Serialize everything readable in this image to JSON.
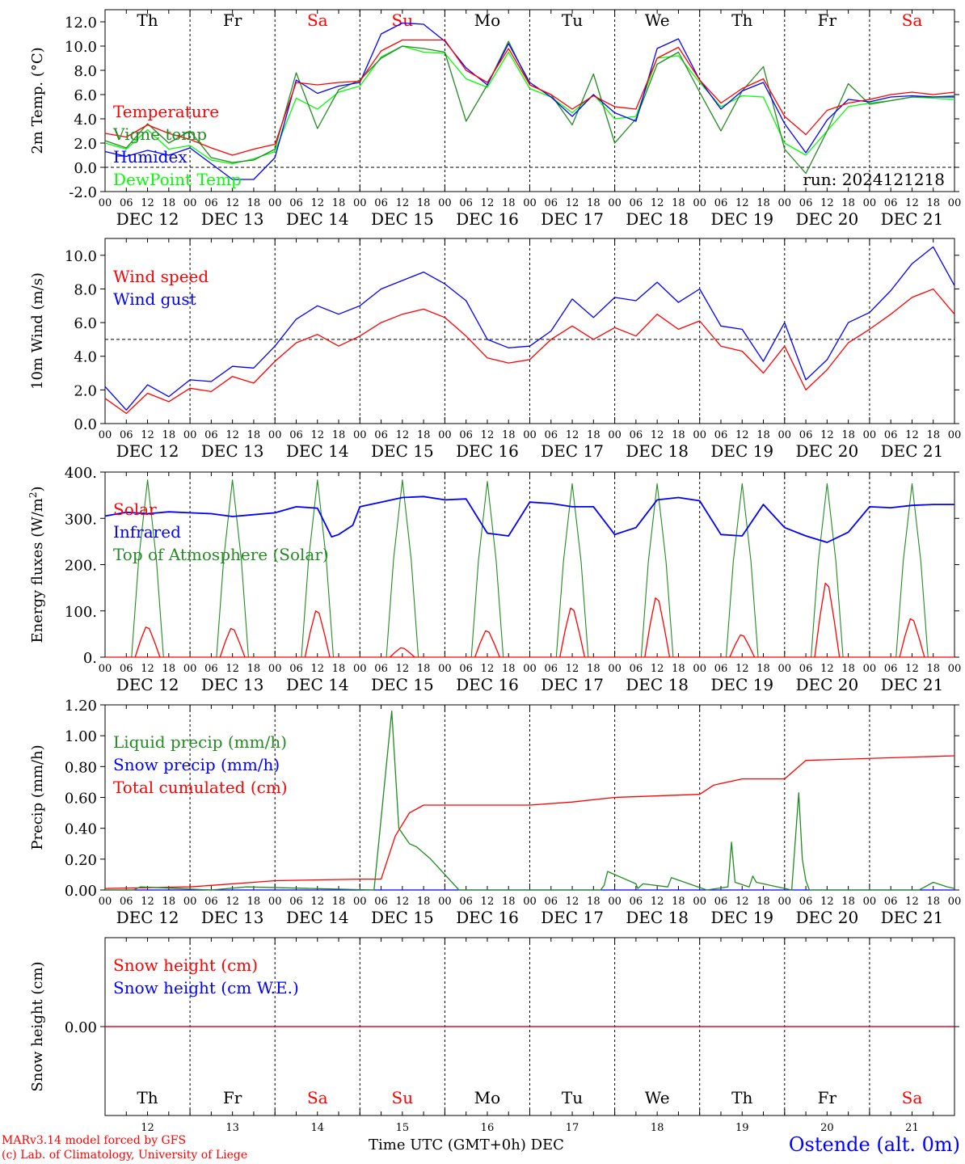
{
  "chart_data": [
    {
      "type": "line",
      "ylabel": "2m Temp. (°C)",
      "ylim": [
        -2,
        13
      ],
      "yticks": [
        "-2.0",
        "0.0",
        "2.0",
        "4.0",
        "6.0",
        "8.0",
        "10.0",
        "12.0"
      ],
      "reference_line": 0,
      "day_names": [
        "Th",
        "Fr",
        "Sa",
        "Su",
        "Mo",
        "Tu",
        "We",
        "Th",
        "Fr",
        "Sa"
      ],
      "weekend_days": [
        "Sa",
        "Su"
      ],
      "run_label": "run: 2024121218",
      "x": [
        0,
        6,
        12,
        18,
        24,
        30,
        36,
        42,
        48,
        54,
        60,
        66,
        72,
        78,
        84,
        90,
        96,
        102,
        108,
        114,
        120,
        126,
        132,
        138,
        144,
        150,
        156,
        162,
        168,
        174,
        180,
        186,
        192,
        198,
        204,
        210,
        216,
        222,
        228,
        234,
        240
      ],
      "series": [
        {
          "name": "Temperature",
          "color": "#ff0000",
          "values": [
            2.8,
            2.5,
            3.5,
            2.8,
            2.3,
            1.6,
            1.0,
            1.5,
            1.9,
            7.0,
            6.8,
            7.0,
            7.1,
            9.6,
            10.5,
            10.5,
            10.5,
            8.0,
            7.0,
            9.8,
            6.8,
            6.0,
            4.8,
            5.9,
            5.0,
            4.8,
            9.0,
            9.9,
            7.2,
            5.3,
            6.5,
            7.3,
            4.2,
            2.7,
            4.7,
            5.3,
            5.6,
            6.0,
            6.2,
            6.0,
            6.2
          ]
        },
        {
          "name": "Vigne temp",
          "color": "#228b22",
          "values": [
            2.2,
            1.6,
            3.6,
            2.0,
            3.0,
            0.8,
            0.4,
            0.6,
            1.5,
            7.8,
            3.2,
            6.4,
            7.2,
            9.0,
            10.0,
            9.8,
            9.5,
            3.8,
            6.8,
            10.4,
            6.8,
            6.0,
            3.5,
            7.7,
            2.0,
            4.0,
            8.5,
            9.5,
            6.2,
            3.0,
            6.3,
            8.3,
            1.5,
            -0.5,
            3.0,
            6.9,
            5.2,
            5.5,
            5.8,
            5.8,
            5.9
          ]
        },
        {
          "name": "Humidex",
          "color": "#0000ff",
          "values": [
            1.3,
            0.9,
            1.4,
            1.0,
            1.6,
            0.3,
            -1.0,
            -1.0,
            0.8,
            7.2,
            6.1,
            6.7,
            7.0,
            11.0,
            11.9,
            11.8,
            10.4,
            8.2,
            6.8,
            10.2,
            7.0,
            5.8,
            4.2,
            6.0,
            4.5,
            3.8,
            9.8,
            10.6,
            7.2,
            4.8,
            6.3,
            7.0,
            3.6,
            1.2,
            3.9,
            5.6,
            5.4,
            5.8,
            5.9,
            5.8,
            5.8
          ]
        },
        {
          "name": "DewPoint Temp",
          "color": "#00ff00",
          "values": [
            2.0,
            1.5,
            3.1,
            1.5,
            1.8,
            0.6,
            0.3,
            0.7,
            1.3,
            5.7,
            4.8,
            6.2,
            6.7,
            9.1,
            10.0,
            9.5,
            9.4,
            7.3,
            6.6,
            9.5,
            6.5,
            5.8,
            4.5,
            6.0,
            4.0,
            4.2,
            9.0,
            9.2,
            7.0,
            5.0,
            5.9,
            5.8,
            2.0,
            1.0,
            3.0,
            5.0,
            5.3,
            5.5,
            5.8,
            5.7,
            5.6
          ]
        }
      ]
    },
    {
      "type": "line",
      "ylabel": "10m Wind (m/s)",
      "ylim": [
        0,
        11
      ],
      "yticks": [
        "0.0",
        "2.0",
        "4.0",
        "6.0",
        "8.0",
        "10.0"
      ],
      "reference_line": 5,
      "x": [
        0,
        6,
        12,
        18,
        24,
        30,
        36,
        42,
        48,
        54,
        60,
        66,
        72,
        78,
        84,
        90,
        96,
        102,
        108,
        114,
        120,
        126,
        132,
        138,
        144,
        150,
        156,
        162,
        168,
        174,
        180,
        186,
        192,
        198,
        204,
        210,
        216,
        222,
        228,
        234,
        240
      ],
      "series": [
        {
          "name": "Wind speed",
          "color": "#ff0000",
          "values": [
            1.5,
            0.6,
            1.8,
            1.3,
            2.1,
            1.9,
            2.8,
            2.4,
            3.7,
            4.8,
            5.3,
            4.6,
            5.2,
            6.0,
            6.5,
            6.8,
            6.3,
            5.2,
            3.9,
            3.6,
            3.8,
            5.0,
            5.8,
            5.0,
            5.7,
            5.2,
            6.5,
            5.6,
            6.1,
            4.6,
            4.3,
            3.0,
            4.6,
            2.0,
            3.2,
            4.8,
            5.6,
            6.5,
            7.5,
            8.0,
            6.5
          ]
        },
        {
          "name": "Wind gust",
          "color": "#0000ff",
          "values": [
            2.2,
            0.8,
            2.3,
            1.6,
            2.6,
            2.5,
            3.4,
            3.3,
            4.6,
            6.2,
            7.0,
            6.5,
            7.0,
            8.0,
            8.5,
            9.0,
            8.3,
            7.3,
            5.0,
            4.5,
            4.6,
            5.5,
            7.4,
            6.3,
            7.5,
            7.3,
            8.4,
            7.2,
            8.0,
            5.8,
            5.6,
            3.7,
            6.0,
            2.6,
            3.8,
            6.0,
            6.6,
            7.9,
            9.5,
            10.5,
            8.2
          ]
        }
      ]
    },
    {
      "type": "line",
      "ylabel": "Energy fluxes (W/m²)",
      "ylim": [
        0,
        400
      ],
      "yticks": [
        "0.",
        "100.",
        "200.",
        "300.",
        "400."
      ],
      "series": [
        {
          "name": "Solar",
          "color": "#ff0000",
          "peaks": [
            65,
            62,
            100,
            20,
            57,
            106,
            128,
            48,
            160,
            83
          ]
        },
        {
          "name": "Infrared",
          "color": "#0000ff",
          "x": [
            0,
            6,
            12,
            18,
            24,
            30,
            36,
            42,
            48,
            54,
            60,
            64,
            66,
            70,
            72,
            78,
            84,
            90,
            96,
            102,
            108,
            114,
            120,
            126,
            132,
            138,
            144,
            150,
            156,
            162,
            168,
            174,
            180,
            186,
            192,
            198,
            204,
            210,
            216,
            222,
            228,
            234,
            240
          ],
          "values": [
            305,
            313,
            310,
            314,
            312,
            310,
            304,
            308,
            312,
            325,
            322,
            260,
            265,
            285,
            325,
            335,
            345,
            347,
            340,
            342,
            268,
            262,
            335,
            332,
            325,
            325,
            265,
            280,
            340,
            345,
            338,
            265,
            262,
            330,
            280,
            262,
            248,
            270,
            325,
            323,
            328,
            330,
            330
          ]
        },
        {
          "name": "Top of Atmosphere (Solar)",
          "color": "#228b22",
          "peaks": [
            383,
            383,
            383,
            383,
            380,
            375,
            375,
            375,
            375,
            375
          ]
        }
      ]
    },
    {
      "type": "line",
      "ylabel": "Precip (mm/h)",
      "ylim": [
        0,
        1.2
      ],
      "yticks": [
        "0.00",
        "0.20",
        "0.40",
        "0.60",
        "0.80",
        "1.00",
        "1.20"
      ],
      "series": [
        {
          "name": "Liquid precip (mm/h)",
          "color": "#228b22",
          "x": [
            0,
            8,
            10,
            30,
            40,
            76,
            81,
            83,
            86,
            88,
            92,
            100,
            140,
            141,
            142,
            150,
            150.5,
            152,
            159,
            160,
            170,
            176,
            177,
            178,
            182,
            183,
            184,
            194,
            196,
            197,
            198,
            199,
            230,
            234,
            238,
            240
          ],
          "values": [
            0,
            0,
            0.02,
            0,
            0.02,
            0,
            1.16,
            0.4,
            0.3,
            0.28,
            0.2,
            0,
            0,
            0.03,
            0.12,
            0.04,
            0.01,
            0.04,
            0.02,
            0.08,
            0,
            0.02,
            0.31,
            0.05,
            0.02,
            0.09,
            0.05,
            0,
            0.63,
            0.2,
            0.06,
            0,
            0,
            0.05,
            0.02,
            0.01
          ]
        },
        {
          "name": "Snow precip (mm/h)",
          "color": "#0000ff",
          "x": [
            0,
            240
          ],
          "values": [
            0,
            0
          ]
        },
        {
          "name": "Total cumulated (cm)",
          "color": "#ff0000",
          "x": [
            0,
            24,
            30,
            42,
            48,
            72,
            78,
            82,
            86,
            90,
            120,
            132,
            144,
            168,
            172,
            180,
            186,
            192,
            198,
            240
          ],
          "values": [
            0.01,
            0.02,
            0.03,
            0.05,
            0.06,
            0.07,
            0.07,
            0.35,
            0.5,
            0.55,
            0.55,
            0.57,
            0.6,
            0.62,
            0.68,
            0.72,
            0.72,
            0.72,
            0.84,
            0.87
          ]
        }
      ]
    },
    {
      "type": "line",
      "ylabel": "Snow height (cm)",
      "ylim": [
        -1,
        1
      ],
      "yticks": [
        "0.00"
      ],
      "series": [
        {
          "name": "Snow height (cm)",
          "color": "#ff0000",
          "x": [
            0,
            240
          ],
          "values": [
            0,
            0
          ]
        },
        {
          "name": "Snow height (cm W.E.)",
          "color": "#0000ff",
          "x": [
            0,
            240
          ],
          "values": [
            0,
            0
          ]
        }
      ]
    }
  ],
  "x_axis": {
    "hour_ticks": [
      "00",
      "06",
      "12",
      "18"
    ],
    "date_labels": [
      "DEC 12",
      "DEC 13",
      "DEC 14",
      "DEC 15",
      "DEC 16",
      "DEC 17",
      "DEC 18",
      "DEC 19",
      "DEC 20",
      "DEC 21"
    ],
    "day_numbers": [
      "12",
      "13",
      "14",
      "15",
      "16",
      "17",
      "18",
      "19",
      "20",
      "21"
    ],
    "month": "DEC"
  },
  "footer": {
    "credit_line1": "MARv3.14 model forced by GFS",
    "credit_line2": "(c) Lab. of Climatology, University of Liege",
    "xaxis_title": "Time UTC (GMT+0h)",
    "station": "Ostende (alt. 0m)"
  },
  "colors": {
    "weekend": "#ff0000",
    "text": "#000000",
    "grid": "#000000"
  }
}
